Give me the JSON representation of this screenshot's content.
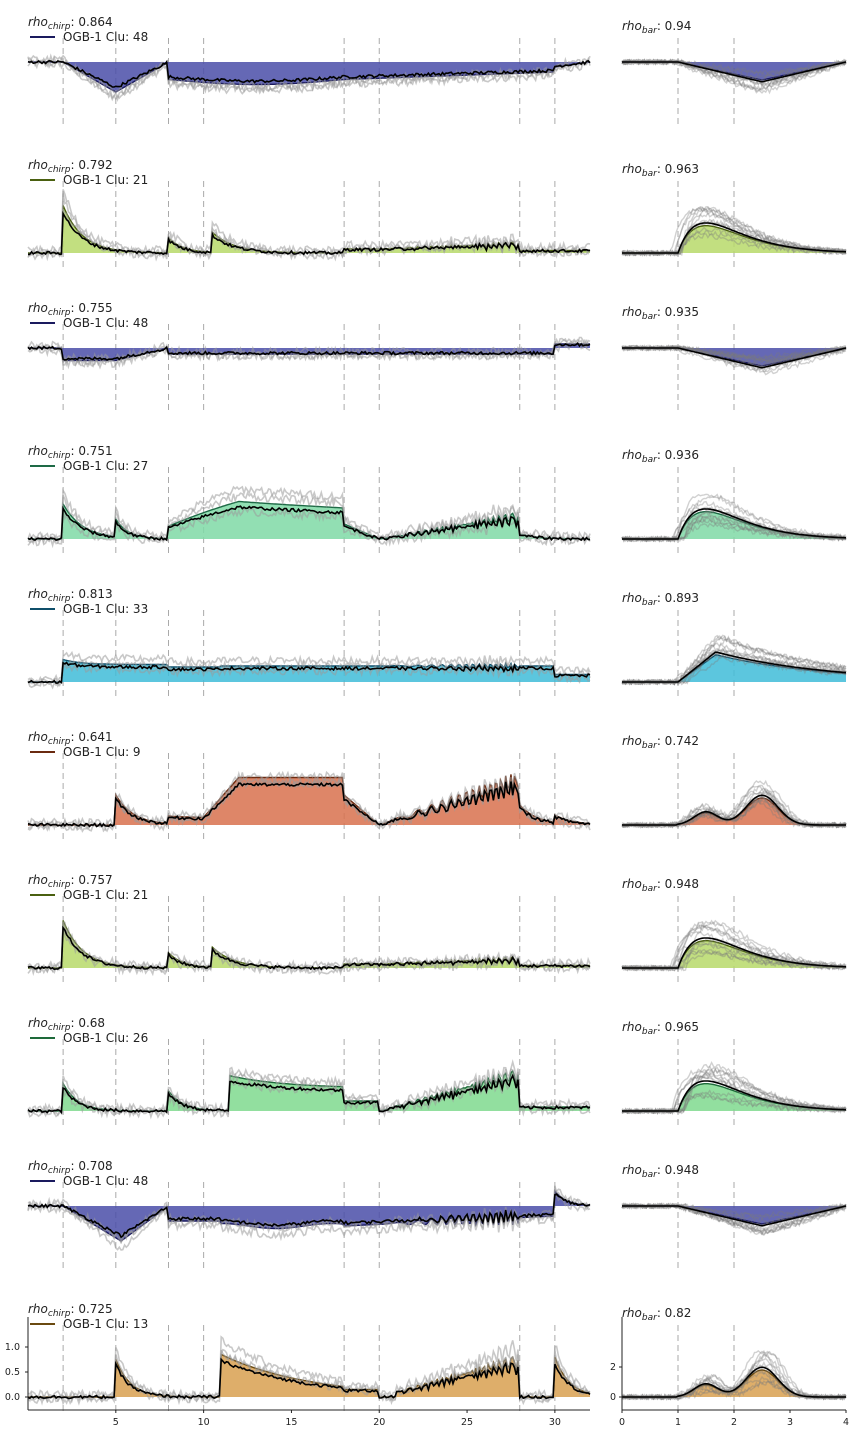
{
  "chart_data": {
    "type": "line",
    "left_stimulus_times": [
      2,
      5,
      8,
      10,
      18,
      20,
      28,
      30
    ],
    "right_stimulus_times": [
      1,
      2
    ],
    "left_xlim": [
      0,
      32
    ],
    "right_xlim": [
      0,
      4
    ],
    "left_xticks": [
      "5",
      "10",
      "15",
      "20",
      "25",
      "30"
    ],
    "right_xticks": [
      "0",
      "1",
      "2",
      "3",
      "4"
    ],
    "left_yticks": [
      "0.0",
      "0.5",
      "1.0"
    ],
    "right_yticks": [
      "0",
      "2"
    ],
    "rows": [
      {
        "rho_chirp": "0.864",
        "rho_bar": "0.94",
        "legend": "OGB-1 Clu: 48",
        "color": "#1a1a5e",
        "fill": "#4a4ea8",
        "kind": "off"
      },
      {
        "rho_chirp": "0.792",
        "rho_bar": "0.963",
        "legend": "OGB-1 Clu: 21",
        "color": "#4a6010",
        "fill": "#b7d96a",
        "kind": "on_transient"
      },
      {
        "rho_chirp": "0.755",
        "rho_bar": "0.935",
        "legend": "OGB-1 Clu: 48",
        "color": "#1a1a5e",
        "fill": "#4a4ea8",
        "kind": "off_small"
      },
      {
        "rho_chirp": "0.751",
        "rho_bar": "0.936",
        "legend": "OGB-1 Clu: 27",
        "color": "#1e6a46",
        "fill": "#7fd9a6",
        "kind": "on_sustained"
      },
      {
        "rho_chirp": "0.813",
        "rho_bar": "0.893",
        "legend": "OGB-1 Clu: 33",
        "color": "#0f4f6a",
        "fill": "#40bcd8",
        "kind": "plateau"
      },
      {
        "rho_chirp": "0.641",
        "rho_bar": "0.742",
        "legend": "OGB-1 Clu: 9",
        "color": "#6a2a10",
        "fill": "#d8714d",
        "kind": "onoff"
      },
      {
        "rho_chirp": "0.757",
        "rho_bar": "0.948",
        "legend": "OGB-1 Clu: 21",
        "color": "#4a6010",
        "fill": "#b7d96a",
        "kind": "on_transient"
      },
      {
        "rho_chirp": "0.68",
        "rho_bar": "0.965",
        "legend": "OGB-1 Clu: 26",
        "color": "#1e6a3a",
        "fill": "#7fd98e",
        "kind": "on_sustained2"
      },
      {
        "rho_chirp": "0.708",
        "rho_bar": "0.948",
        "legend": "OGB-1 Clu: 48",
        "color": "#1a1a5e",
        "fill": "#4a4ea8",
        "kind": "off_big"
      },
      {
        "rho_chirp": "0.725",
        "rho_bar": "0.82",
        "legend": "OGB-1 Clu: 13",
        "color": "#6a4a10",
        "fill": "#d8a050",
        "kind": "onoff2"
      }
    ]
  }
}
